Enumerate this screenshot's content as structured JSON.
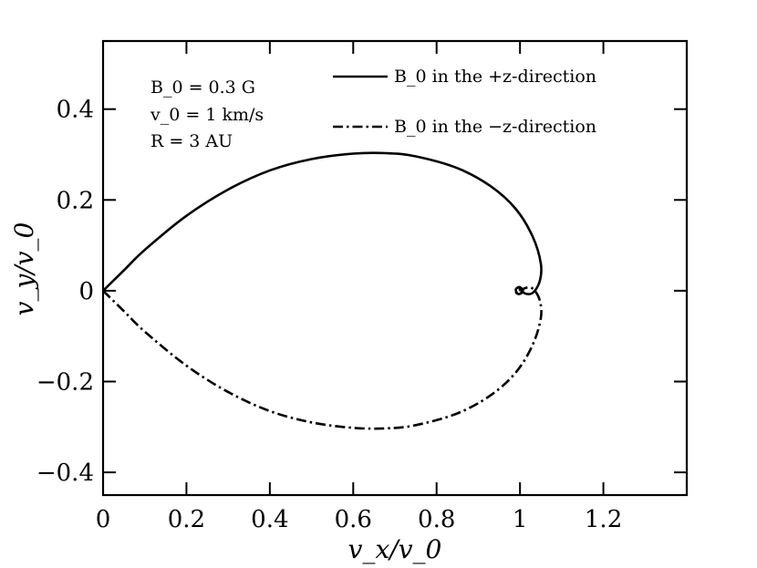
{
  "chart_data": {
    "type": "line",
    "title": "",
    "xlabel": "v_x/v_0",
    "ylabel": "v_y/v_0",
    "xlim": [
      0,
      1.4
    ],
    "ylim": [
      -0.45,
      0.55
    ],
    "xticks": [
      0,
      0.2,
      0.4,
      0.6,
      0.8,
      1,
      1.2
    ],
    "xtick_labels": [
      "0",
      "0.2",
      "0.4",
      "0.6",
      "0.8",
      "1",
      "1.2"
    ],
    "yticks": [
      -0.4,
      -0.2,
      0,
      0.2,
      0.4
    ],
    "ytick_labels": [
      "−0.4",
      "−0.2",
      "0",
      "0.2",
      "0.4"
    ],
    "grid": false,
    "legend_position": "top-right",
    "annotation_lines": [
      "B_0 = 0.3 G",
      "v_0 = 1 km/s",
      "R = 3 AU"
    ],
    "series": [
      {
        "name": "B_0 in the +z-direction",
        "style": "solid",
        "color": "#000000",
        "points": [
          [
            0,
            0
          ],
          [
            0.05,
            0.045
          ],
          [
            0.1,
            0.09
          ],
          [
            0.2,
            0.165
          ],
          [
            0.3,
            0.223
          ],
          [
            0.4,
            0.265
          ],
          [
            0.5,
            0.29
          ],
          [
            0.6,
            0.302
          ],
          [
            0.68,
            0.303
          ],
          [
            0.75,
            0.296
          ],
          [
            0.85,
            0.27
          ],
          [
            0.93,
            0.23
          ],
          [
            0.99,
            0.18
          ],
          [
            1.03,
            0.12
          ],
          [
            1.05,
            0.06
          ],
          [
            1.047,
            0.02
          ],
          [
            1.03,
            -0.005
          ],
          [
            1.01,
            -0.005
          ],
          [
            1.0,
            0.008
          ],
          [
            0.99,
            0.003
          ],
          [
            0.995,
            -0.007
          ],
          [
            1.005,
            -0.004
          ],
          [
            1.006,
            0.004
          ],
          [
            1.0,
            0.004
          ],
          [
            1.0,
            0.0
          ]
        ]
      },
      {
        "name": "B_0 in the −z-direction",
        "style": "dashdot",
        "color": "#000000",
        "points": [
          [
            0,
            0
          ],
          [
            0.05,
            -0.045
          ],
          [
            0.1,
            -0.09
          ],
          [
            0.2,
            -0.165
          ],
          [
            0.3,
            -0.223
          ],
          [
            0.4,
            -0.265
          ],
          [
            0.5,
            -0.29
          ],
          [
            0.6,
            -0.302
          ],
          [
            0.68,
            -0.303
          ],
          [
            0.75,
            -0.296
          ],
          [
            0.85,
            -0.27
          ],
          [
            0.93,
            -0.23
          ],
          [
            0.99,
            -0.18
          ],
          [
            1.03,
            -0.12
          ],
          [
            1.05,
            -0.06
          ],
          [
            1.047,
            -0.02
          ],
          [
            1.03,
            0.005
          ],
          [
            1.01,
            0.005
          ],
          [
            1.0,
            -0.008
          ],
          [
            0.99,
            -0.003
          ],
          [
            0.995,
            0.007
          ],
          [
            1.005,
            0.004
          ],
          [
            1.006,
            -0.004
          ],
          [
            1.0,
            -0.004
          ],
          [
            1.0,
            0.0
          ]
        ]
      }
    ]
  }
}
